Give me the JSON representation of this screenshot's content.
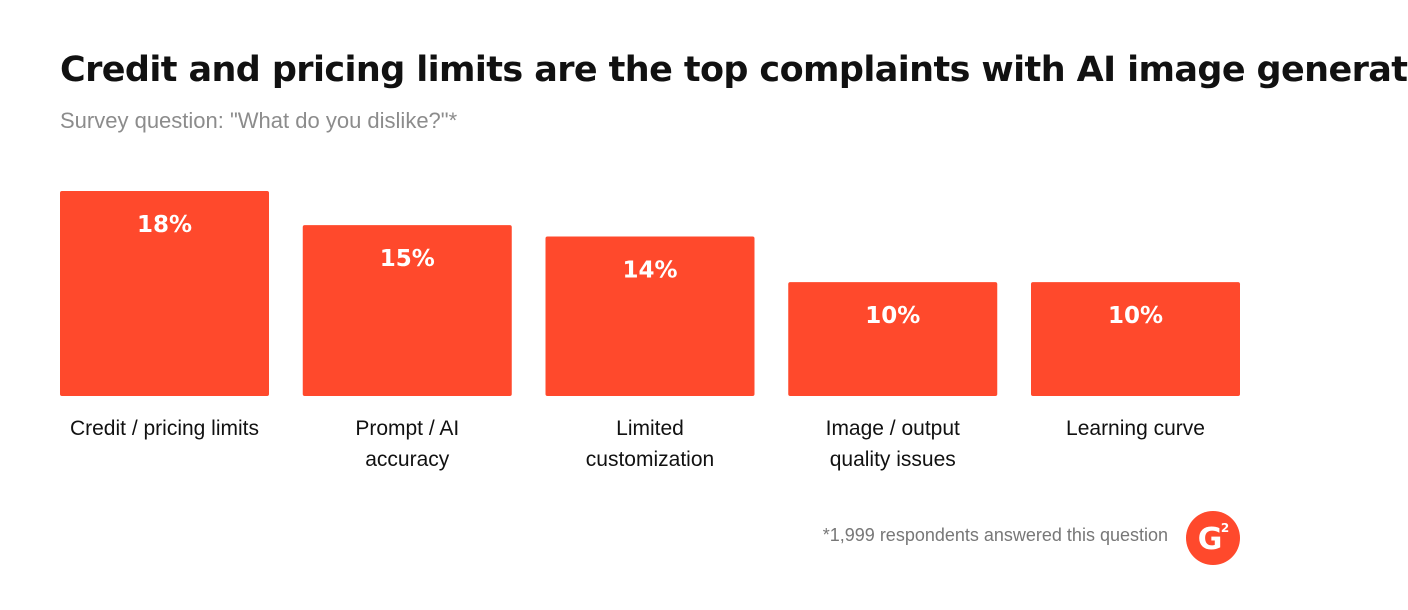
{
  "title": "Credit and pricing limits are the top complaints with AI image generation",
  "subtitle": "Survey question: \"What do you dislike?\"*",
  "footnote": "*1,999 respondents answered this question",
  "brand": {
    "logo_text": "G",
    "logo_superscript": "2",
    "logo_color": "#ff492c",
    "icon": "g2-logo-icon"
  },
  "colors": {
    "bar": "#ff492c",
    "bar_label": "#ffffff",
    "category_label": "#111111"
  },
  "chart_data": {
    "type": "bar",
    "categories": [
      [
        "Credit / pricing limits"
      ],
      [
        "Prompt / AI",
        "accuracy"
      ],
      [
        "Limited",
        "customization"
      ],
      [
        "Image / output",
        "quality issues"
      ],
      [
        "Learning curve"
      ]
    ],
    "values": [
      18,
      15,
      14,
      10,
      10
    ],
    "value_labels": [
      "18%",
      "15%",
      "14%",
      "10%",
      "10%"
    ],
    "unit": "%",
    "ylim": [
      0,
      18
    ],
    "grid": false,
    "legend": "none"
  }
}
